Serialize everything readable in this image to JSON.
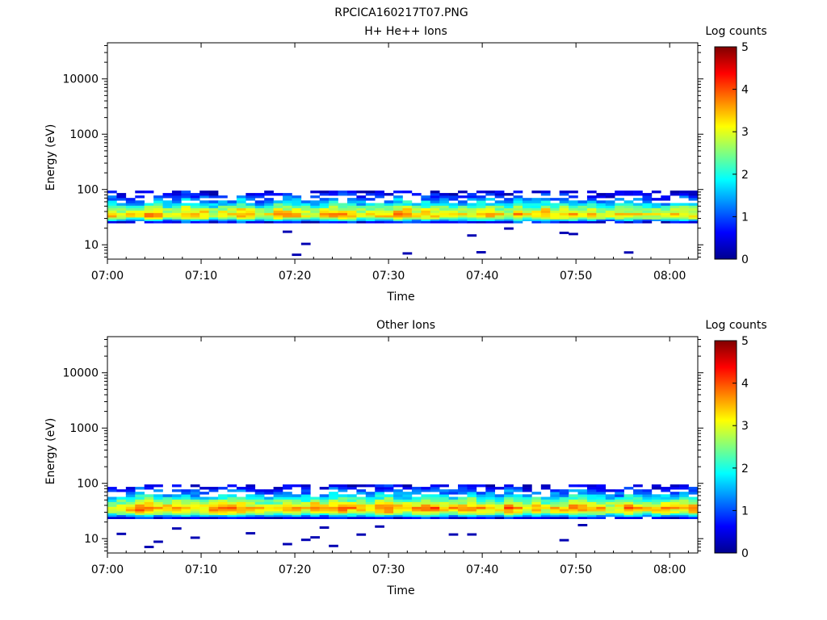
{
  "figure_title": "RPCICA160217T07.PNG",
  "colors": {
    "axis": "#000000",
    "background": "#ffffff",
    "colormap": "jet"
  },
  "chart_data": [
    {
      "type": "heatmap",
      "title": "H+ He++ Ions",
      "xlabel": "Time",
      "ylabel": "Energy (eV)",
      "colorbar_label": "Log counts",
      "x_range": [
        "07:00",
        "08:03"
      ],
      "x_ticks": [
        "07:00",
        "07:10",
        "07:20",
        "07:30",
        "07:40",
        "07:50",
        "08:00"
      ],
      "y_scale": "log",
      "y_range": [
        5.5,
        45000
      ],
      "y_ticks": [
        10,
        100,
        1000,
        10000
      ],
      "y_tick_labels": [
        "10",
        "100",
        "1000",
        "10000"
      ],
      "colorbar_range": [
        0,
        5
      ],
      "colorbar_ticks": [
        "0",
        "1",
        "2",
        "3",
        "4",
        "5"
      ],
      "band_profile": [
        {
          "energy_ev": 26,
          "log_counts": 0.6
        },
        {
          "energy_ev": 28,
          "log_counts": 1.6
        },
        {
          "energy_ev": 30,
          "log_counts": 2.6
        },
        {
          "energy_ev": 33,
          "log_counts": 3.2
        },
        {
          "energy_ev": 36,
          "log_counts": 3.3
        },
        {
          "energy_ev": 40,
          "log_counts": 3.0
        },
        {
          "energy_ev": 44,
          "log_counts": 2.7
        },
        {
          "energy_ev": 49,
          "log_counts": 2.3
        },
        {
          "energy_ev": 54,
          "log_counts": 1.8
        },
        {
          "energy_ev": 60,
          "log_counts": 1.5
        },
        {
          "energy_ev": 67,
          "log_counts": 1.2
        },
        {
          "energy_ev": 74,
          "log_counts": 0.9
        },
        {
          "energy_ev": 82,
          "log_counts": 0.6
        },
        {
          "energy_ev": 91,
          "log_counts": 0.35
        }
      ],
      "background_energy_range_ev": [
        6,
        20
      ]
    },
    {
      "type": "heatmap",
      "title": "Other Ions",
      "xlabel": "Time",
      "ylabel": "Energy (eV)",
      "colorbar_label": "Log counts",
      "x_range": [
        "07:00",
        "08:03"
      ],
      "x_ticks": [
        "07:00",
        "07:10",
        "07:20",
        "07:30",
        "07:40",
        "07:50",
        "08:00"
      ],
      "y_scale": "log",
      "y_range": [
        5.5,
        45000
      ],
      "y_ticks": [
        10,
        100,
        1000,
        10000
      ],
      "y_tick_labels": [
        "10",
        "100",
        "1000",
        "10000"
      ],
      "colorbar_range": [
        0,
        5
      ],
      "colorbar_ticks": [
        "0",
        "1",
        "2",
        "3",
        "4",
        "5"
      ],
      "band_profile": [
        {
          "energy_ev": 24,
          "log_counts": 0.6
        },
        {
          "energy_ev": 26,
          "log_counts": 1.6
        },
        {
          "energy_ev": 28,
          "log_counts": 2.4
        },
        {
          "energy_ev": 30,
          "log_counts": 3.0
        },
        {
          "energy_ev": 33,
          "log_counts": 3.4
        },
        {
          "energy_ev": 36,
          "log_counts": 3.6
        },
        {
          "energy_ev": 40,
          "log_counts": 3.2
        },
        {
          "energy_ev": 44,
          "log_counts": 2.8
        },
        {
          "energy_ev": 49,
          "log_counts": 2.4
        },
        {
          "energy_ev": 54,
          "log_counts": 2.0
        },
        {
          "energy_ev": 60,
          "log_counts": 1.6
        },
        {
          "energy_ev": 67,
          "log_counts": 1.3
        },
        {
          "energy_ev": 74,
          "log_counts": 1.0
        },
        {
          "energy_ev": 82,
          "log_counts": 0.7
        },
        {
          "energy_ev": 91,
          "log_counts": 0.4
        }
      ],
      "background_energy_range_ev": [
        6,
        20
      ]
    }
  ]
}
